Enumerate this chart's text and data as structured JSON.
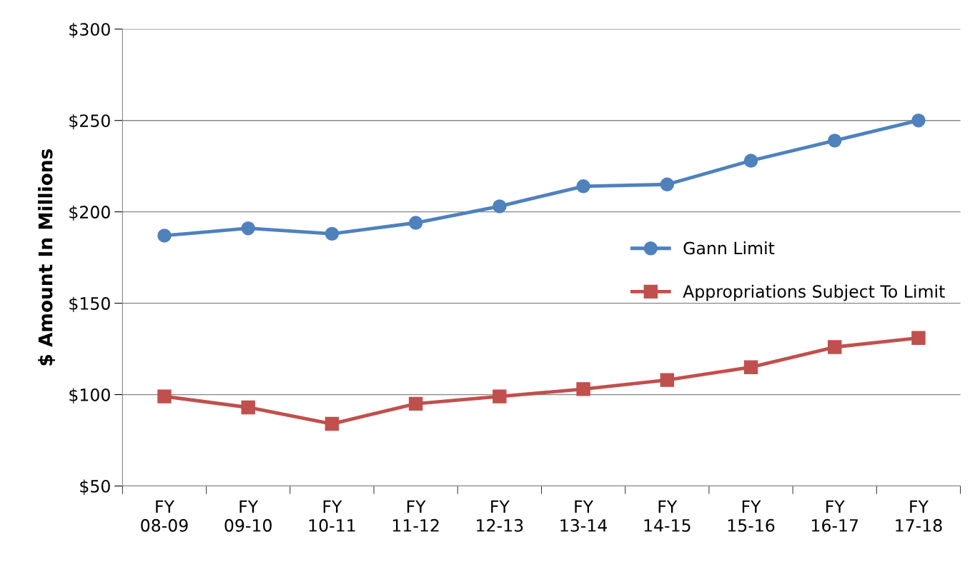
{
  "chart_data": {
    "type": "line",
    "ylabel": "$ Amount In Millions",
    "categories": [
      "FY\n08-09",
      "FY\n09-10",
      "FY\n10-11",
      "FY\n11-12",
      "FY\n12-13",
      "FY\n13-14",
      "FY\n14-15",
      "FY\n15-16",
      "FY\n16-17",
      "FY\n17-18"
    ],
    "series": [
      {
        "name": "Gann Limit",
        "color": "#4f81bd",
        "marker": "circle",
        "values": [
          187,
          191,
          188,
          194,
          203,
          214,
          215,
          228,
          239,
          250
        ]
      },
      {
        "name": "Appropriations Subject To Limit",
        "color": "#c0504d",
        "marker": "square",
        "values": [
          99,
          93,
          84,
          95,
          99,
          103,
          108,
          115,
          126,
          131
        ]
      }
    ],
    "ylim": [
      50,
      300
    ],
    "yticks": [
      {
        "value": 50,
        "label": "$50"
      },
      {
        "value": 100,
        "label": "$100"
      },
      {
        "value": 150,
        "label": "$150"
      },
      {
        "value": 200,
        "label": "$200"
      },
      {
        "value": 250,
        "label": "$250"
      },
      {
        "value": 300,
        "label": "$300"
      }
    ],
    "grid": "y",
    "legend": "center right",
    "line_style": "solid"
  }
}
